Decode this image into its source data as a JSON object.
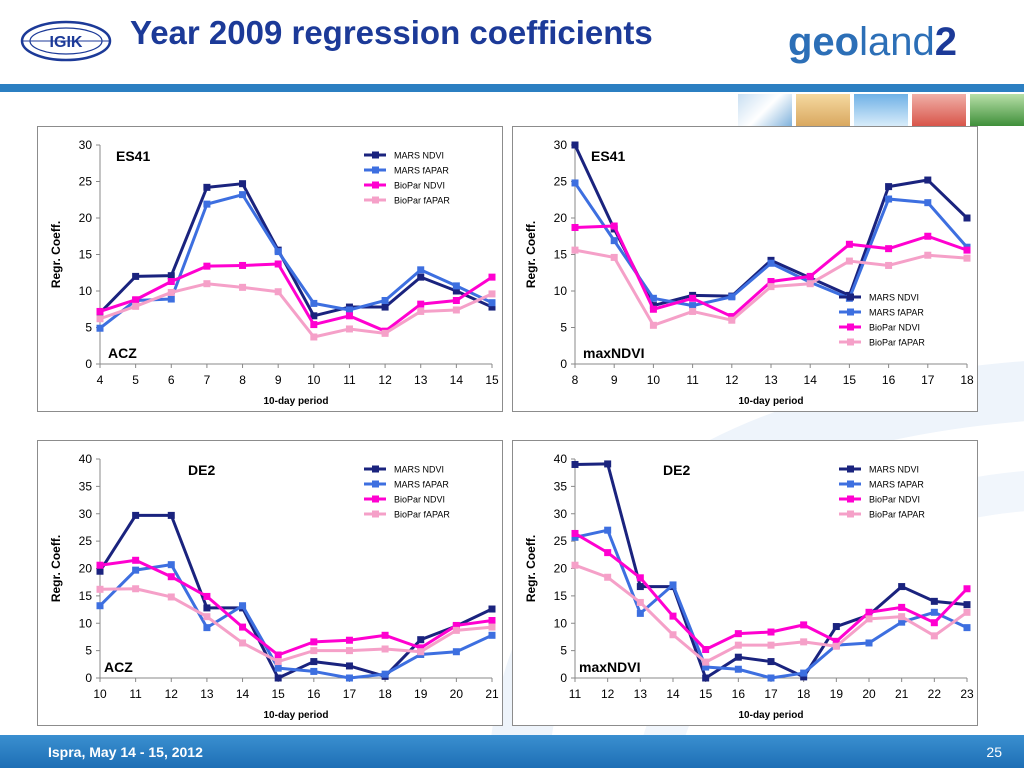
{
  "slide": {
    "title": "Year 2009 regression coefficients",
    "footer": "Ispra, May 14 - 15, 2012",
    "page_number": "25",
    "logo_left": "IGIK",
    "logo_right": {
      "part1": "geo",
      "part2": "land",
      "part3": "2"
    },
    "colors": {
      "title": "#1c3a98",
      "footer": "#2a7cc2",
      "accent_line": "#2b7fc2"
    }
  },
  "chart_data": [
    {
      "type": "line",
      "region": "ES41",
      "variant": "ACZ",
      "xlabel": "10-day period",
      "ylabel": "Regr. Coeff.",
      "x": [
        4,
        5,
        6,
        7,
        8,
        9,
        10,
        11,
        12,
        13,
        14,
        15
      ],
      "ylim": [
        0,
        30
      ],
      "yticks": [
        0,
        5,
        10,
        15,
        20,
        25,
        30
      ],
      "legend_position": "top-right",
      "series": [
        {
          "name": "MARS NDVI",
          "color": "#1a237e",
          "values": [
            7.0,
            12.0,
            12.1,
            24.2,
            24.7,
            15.6,
            6.6,
            7.8,
            7.8,
            11.9,
            10.0,
            7.8
          ]
        },
        {
          "name": "MARS fAPAR",
          "color": "#3d6fe0",
          "values": [
            4.9,
            8.7,
            8.9,
            21.9,
            23.2,
            15.4,
            8.3,
            7.4,
            8.7,
            12.9,
            10.7,
            8.4
          ]
        },
        {
          "name": "BioPar NDVI",
          "color": "#ff00d0",
          "values": [
            7.2,
            8.8,
            11.3,
            13.4,
            13.5,
            13.7,
            5.4,
            6.6,
            4.5,
            8.2,
            8.7,
            11.9
          ]
        },
        {
          "name": "BioPar fAPAR",
          "color": "#f5a0c8",
          "values": [
            6.2,
            7.9,
            9.8,
            11.0,
            10.5,
            9.9,
            3.7,
            4.8,
            4.2,
            7.2,
            7.4,
            9.6
          ]
        }
      ]
    },
    {
      "type": "line",
      "region": "ES41",
      "variant": "maxNDVI",
      "xlabel": "10-day period",
      "ylabel": "Regr. Coeff.",
      "x": [
        8,
        9,
        10,
        11,
        12,
        13,
        14,
        15,
        16,
        17,
        18
      ],
      "ylim": [
        0,
        30
      ],
      "yticks": [
        0,
        5,
        10,
        15,
        20,
        25,
        30
      ],
      "legend_position": "bottom-right",
      "series": [
        {
          "name": "MARS NDVI",
          "color": "#1a237e",
          "values": [
            30.0,
            18.5,
            8.0,
            9.4,
            9.3,
            14.2,
            11.8,
            9.4,
            24.3,
            25.2,
            20.0
          ]
        },
        {
          "name": "MARS fAPAR",
          "color": "#3d6fe0",
          "values": [
            24.8,
            16.9,
            9.0,
            8.0,
            9.2,
            13.8,
            11.2,
            9.0,
            22.6,
            22.1,
            16.0
          ]
        },
        {
          "name": "BioPar NDVI",
          "color": "#ff00d0",
          "values": [
            18.7,
            18.9,
            7.5,
            9.0,
            6.5,
            11.3,
            12.0,
            16.4,
            15.8,
            17.5,
            15.6
          ]
        },
        {
          "name": "BioPar fAPAR",
          "color": "#f5a0c8",
          "values": [
            15.6,
            14.6,
            5.3,
            7.2,
            6.0,
            10.6,
            11.0,
            14.1,
            13.5,
            14.9,
            14.5
          ]
        }
      ]
    },
    {
      "type": "line",
      "region": "DE2",
      "variant": "ACZ",
      "xlabel": "10-day period",
      "ylabel": "Regr. Coeff.",
      "x": [
        10,
        11,
        12,
        13,
        14,
        15,
        16,
        17,
        18,
        19,
        20,
        21
      ],
      "ylim": [
        0,
        40
      ],
      "yticks": [
        0,
        5,
        10,
        15,
        20,
        25,
        30,
        35,
        40
      ],
      "legend_position": "top-right",
      "series": [
        {
          "name": "MARS NDVI",
          "color": "#1a237e",
          "values": [
            19.5,
            29.7,
            29.7,
            12.8,
            12.8,
            0.0,
            3.0,
            2.2,
            0.3,
            7.0,
            9.5,
            12.6
          ]
        },
        {
          "name": "MARS fAPAR",
          "color": "#3d6fe0",
          "values": [
            13.2,
            19.7,
            20.7,
            9.2,
            13.2,
            1.8,
            1.2,
            0.0,
            0.7,
            4.3,
            4.8,
            7.8
          ]
        },
        {
          "name": "BioPar NDVI",
          "color": "#ff00d0",
          "values": [
            20.6,
            21.5,
            18.5,
            14.9,
            9.3,
            4.2,
            6.6,
            6.9,
            7.8,
            5.5,
            9.6,
            10.5
          ]
        },
        {
          "name": "BioPar fAPAR",
          "color": "#f5a0c8",
          "values": [
            16.2,
            16.3,
            14.8,
            11.2,
            6.4,
            3.0,
            5.0,
            5.0,
            5.3,
            4.8,
            8.7,
            9.3
          ]
        }
      ]
    },
    {
      "type": "line",
      "region": "DE2",
      "variant": "maxNDVI",
      "xlabel": "10-day period",
      "ylabel": "Regr. Coeff.",
      "x": [
        11,
        12,
        13,
        14,
        15,
        16,
        17,
        18,
        19,
        20,
        21,
        22,
        23
      ],
      "ylim": [
        0,
        40
      ],
      "yticks": [
        0,
        5,
        10,
        15,
        20,
        25,
        30,
        35,
        40
      ],
      "legend_position": "top-right",
      "series": [
        {
          "name": "MARS NDVI",
          "color": "#1a237e",
          "values": [
            39.0,
            39.1,
            16.7,
            16.7,
            0.0,
            3.8,
            3.0,
            0.2,
            9.4,
            11.5,
            16.7,
            14.0,
            13.4
          ]
        },
        {
          "name": "MARS fAPAR",
          "color": "#3d6fe0",
          "values": [
            25.7,
            27.0,
            11.8,
            17.0,
            2.0,
            1.6,
            0.0,
            0.9,
            6.0,
            6.4,
            10.2,
            12.0,
            9.2
          ]
        },
        {
          "name": "BioPar NDVI",
          "color": "#ff00d0",
          "values": [
            26.4,
            22.9,
            18.3,
            11.3,
            5.2,
            8.1,
            8.4,
            9.7,
            6.7,
            12.0,
            12.9,
            10.1,
            16.3
          ]
        },
        {
          "name": "BioPar fAPAR",
          "color": "#f5a0c8",
          "values": [
            20.6,
            18.4,
            13.8,
            7.9,
            2.9,
            6.0,
            6.0,
            6.6,
            5.8,
            10.8,
            11.2,
            7.7,
            12.0
          ]
        }
      ]
    }
  ]
}
